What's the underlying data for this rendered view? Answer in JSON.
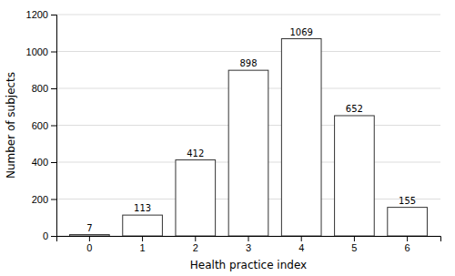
{
  "chart_data": {
    "type": "bar",
    "categories": [
      0,
      1,
      2,
      3,
      4,
      5,
      6
    ],
    "values": [
      7,
      113,
      412,
      898,
      1069,
      652,
      155
    ],
    "color": "#ffffff",
    "xlabel": "Health practice index",
    "ylabel": "Number of subjects",
    "ylim": [
      0,
      1200
    ],
    "yticks": [
      0,
      200,
      400,
      600,
      800,
      1000,
      1200
    ],
    "grid": true,
    "data_labels": true
  }
}
